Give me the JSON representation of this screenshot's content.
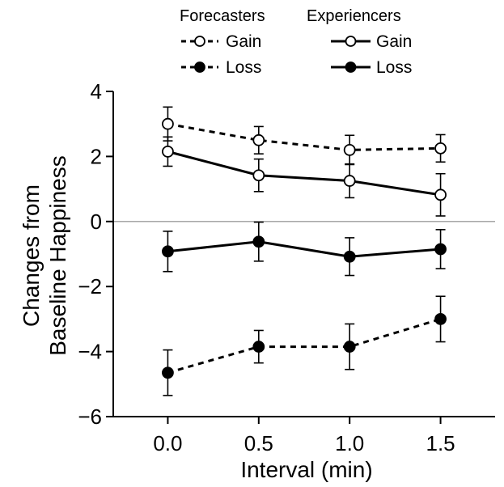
{
  "chart_data": {
    "type": "line",
    "xlabel": "Interval (min)",
    "ylabel": [
      "Changes from",
      "Baseline Happiness"
    ],
    "x": [
      0.0,
      0.5,
      1.0,
      1.5
    ],
    "x_tick_labels": [
      "0.0",
      "0.5",
      "1.0",
      "1.5"
    ],
    "xlim": [
      -0.3,
      1.8
    ],
    "ylim": [
      -6,
      4
    ],
    "y_ticks": [
      4,
      2,
      0,
      -2,
      -4,
      -6
    ],
    "y_tick_labels": [
      "4",
      "2",
      "0",
      "−2",
      "−4",
      "−6"
    ],
    "zero_line": true,
    "grid": false,
    "legend": {
      "placement": "top",
      "groups": [
        {
          "heading": "Forecasters",
          "items": [
            "Gain",
            "Loss"
          ]
        },
        {
          "heading": "Experiencers",
          "items": [
            "Gain",
            "Loss"
          ]
        }
      ]
    },
    "series": [
      {
        "group": "Forecasters",
        "name": "Gain",
        "line_style": "dashed",
        "marker": "open-circle",
        "values": [
          3.0,
          2.5,
          2.2,
          2.25
        ],
        "error": [
          0.52,
          0.42,
          0.45,
          0.42
        ]
      },
      {
        "group": "Forecasters",
        "name": "Loss",
        "line_style": "dashed",
        "marker": "filled-circle",
        "values": [
          -4.65,
          -3.85,
          -3.85,
          -3.0
        ],
        "error": [
          0.7,
          0.5,
          0.7,
          0.7
        ]
      },
      {
        "group": "Experiencers",
        "name": "Gain",
        "line_style": "solid",
        "marker": "open-circle",
        "values": [
          2.15,
          1.42,
          1.25,
          0.82
        ],
        "error": [
          0.45,
          0.5,
          0.52,
          0.65
        ]
      },
      {
        "group": "Experiencers",
        "name": "Loss",
        "line_style": "solid",
        "marker": "filled-circle",
        "values": [
          -0.92,
          -0.62,
          -1.08,
          -0.85
        ],
        "error": [
          0.62,
          0.6,
          0.58,
          0.6
        ]
      }
    ]
  }
}
